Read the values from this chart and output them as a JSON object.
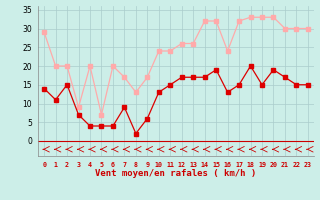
{
  "wind_avg": [
    14,
    11,
    15,
    7,
    4,
    4,
    4,
    9,
    2,
    6,
    13,
    15,
    17,
    17,
    17,
    19,
    13,
    15,
    20,
    15,
    19,
    17,
    15,
    15
  ],
  "wind_gust": [
    29,
    20,
    20,
    9,
    20,
    7,
    20,
    17,
    13,
    17,
    24,
    24,
    26,
    26,
    32,
    32,
    24,
    32,
    33,
    33,
    33,
    30,
    30,
    30
  ],
  "avg_color": "#dd0000",
  "gust_color": "#ffaaaa",
  "dir_color": "#cc0000",
  "bg_color": "#cceee8",
  "grid_color": "#aacccc",
  "xlabel": "Vent moyen/en rafales ( km/h )",
  "xlim": [
    -0.5,
    23.5
  ],
  "ylim": [
    0,
    36
  ],
  "yticks": [
    0,
    5,
    10,
    15,
    20,
    25,
    30,
    35
  ],
  "xticks": [
    0,
    1,
    2,
    3,
    4,
    5,
    6,
    7,
    8,
    9,
    10,
    11,
    12,
    13,
    14,
    15,
    16,
    17,
    18,
    19,
    20,
    21,
    22,
    23
  ]
}
